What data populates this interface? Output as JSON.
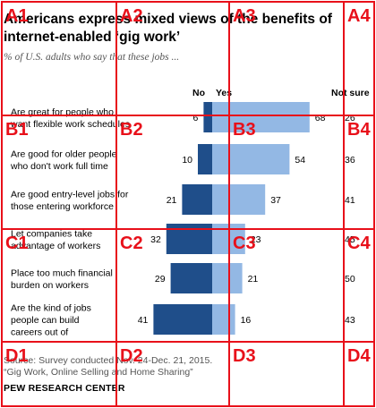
{
  "chart_data": {
    "type": "bar",
    "title": "Americans express mixed views of the benefits of internet-enabled ‘gig work’",
    "subtitle": "% of U.S. adults who say that these jobs ...",
    "column_headers": [
      "No",
      "Yes",
      "Not sure"
    ],
    "categories": [
      [
        "Are great for people who",
        "want flexible work schedules"
      ],
      [
        "Are good for older people",
        "who don't work full time"
      ],
      [
        "Are good entry-level jobs for",
        "those entering workforce"
      ],
      [
        "Let companies take",
        "advantage of workers"
      ],
      [
        "Place too much financial",
        "burden on workers"
      ],
      [
        "Are the kind of jobs",
        "people can build",
        "careers out of"
      ]
    ],
    "series": [
      {
        "name": "No",
        "values": [
          6,
          10,
          21,
          32,
          29,
          41
        ]
      },
      {
        "name": "Yes",
        "values": [
          68,
          54,
          37,
          23,
          21,
          16
        ]
      },
      {
        "name": "Not sure",
        "values": [
          26,
          36,
          41,
          45,
          50,
          43
        ]
      }
    ],
    "colors": {
      "No": "#1f4e8a",
      "Yes": "#93b8e4"
    }
  },
  "source": {
    "line1": "Source: Survey conducted Nov. 24-Dec. 21, 2015.",
    "line2": "“Gig Work, Online Selling and Home Sharing”"
  },
  "org": "PEW RESEARCH CENTER",
  "grid_overlay": {
    "color": "#e8101a",
    "labels": [
      "A1",
      "A2",
      "A3",
      "A4",
      "B1",
      "B2",
      "B3",
      "B4",
      "C1",
      "C2",
      "C3",
      "C4",
      "D1",
      "D2",
      "D3",
      "D4"
    ]
  }
}
